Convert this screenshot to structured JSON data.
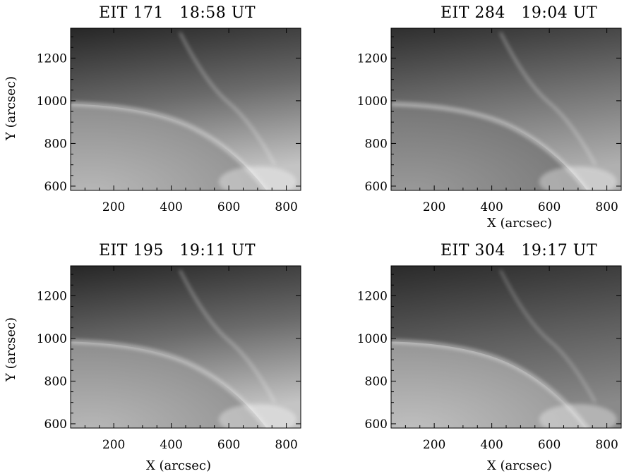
{
  "panels": [
    {
      "title": "EIT 171   18:58 UT",
      "ylabel": "Y (arcsec)",
      "xlabel": "",
      "show_ylabel": true,
      "show_xlabel": false,
      "style": "171"
    },
    {
      "title": "EIT 284   19:04 UT",
      "ylabel": "",
      "xlabel": "X (arcsec)",
      "show_ylabel": false,
      "show_xlabel": true,
      "style": "284"
    },
    {
      "title": "EIT 195   19:11 UT",
      "ylabel": "Y (arcsec)",
      "xlabel": "X (arcsec)",
      "show_ylabel": true,
      "show_xlabel": true,
      "style": "195"
    },
    {
      "title": "EIT 304   19:17 UT",
      "ylabel": "",
      "xlabel": "X (arcsec)",
      "show_ylabel": false,
      "show_xlabel": true,
      "style": "304"
    }
  ],
  "axes": {
    "x_ticks": [
      200,
      400,
      600,
      800
    ],
    "y_ticks": [
      600,
      800,
      1000,
      1200
    ],
    "xlim": [
      50,
      850
    ],
    "ylim": [
      580,
      1340
    ]
  }
}
